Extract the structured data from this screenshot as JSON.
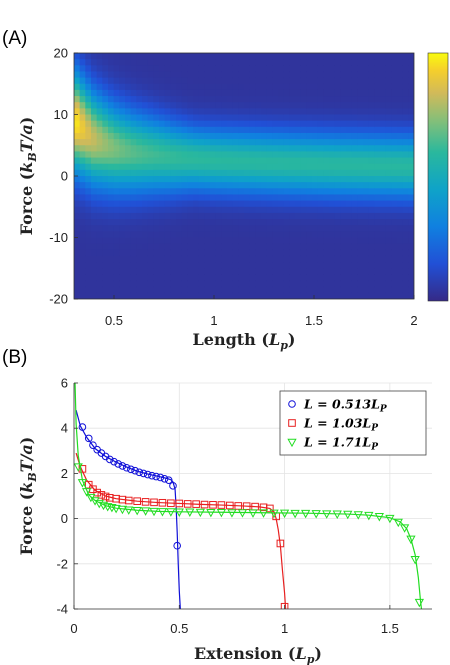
{
  "figure": {
    "panel_a_label": "(A)",
    "panel_b_label": "(B)"
  },
  "chart_data": [
    {
      "type": "heatmap",
      "panel": "(A)",
      "xlabel": "Length (L_p)",
      "xlabel_parts": {
        "main": "Length (",
        "sym": "L",
        "sub": "p",
        "close": ")"
      },
      "ylabel_parts": {
        "main": "Force (",
        "sym": "k",
        "sub": "B",
        "rest": "T/a",
        "close": ")"
      },
      "xlim": [
        0.3,
        2.0
      ],
      "ylim": [
        -20,
        20
      ],
      "xticks": [
        {
          "value": 0.5,
          "label": "0.5"
        },
        {
          "value": 1,
          "label": "1"
        },
        {
          "value": 1.5,
          "label": "1.5"
        },
        {
          "value": 2,
          "label": "2"
        }
      ],
      "yticks": [
        {
          "value": 20,
          "label": "20"
        },
        {
          "value": 10,
          "label": "10"
        },
        {
          "value": 0,
          "label": "0"
        },
        {
          "value": -10,
          "label": "-10"
        },
        {
          "value": -20,
          "label": "-20"
        }
      ],
      "colormap": "parula",
      "colorbar": true,
      "colors": {
        "low": "#352a87",
        "mid": "#0fa3c8",
        "high": "#f9fb0e"
      },
      "density_ridge": {
        "length": [
          0.3,
          0.4,
          0.5,
          0.6,
          0.8,
          1.0,
          1.3,
          1.6,
          2.0
        ],
        "force_peak": [
          9.0,
          6.0,
          4.5,
          3.8,
          3.0,
          2.5,
          2.1,
          1.8,
          1.5
        ]
      }
    },
    {
      "type": "scatter",
      "panel": "(B)",
      "xlabel": "Extension (L_p)",
      "xlabel_parts": {
        "main": "Extension (",
        "sym": "L",
        "sub": "p",
        "close": ")"
      },
      "ylabel_parts": {
        "main": "Force (",
        "sym": "k",
        "sub": "B",
        "rest": "T/a",
        "close": ")"
      },
      "xlim": [
        0,
        1.7
      ],
      "ylim": [
        -4,
        6
      ],
      "xticks": [
        {
          "value": 0,
          "label": "0"
        },
        {
          "value": 0.5,
          "label": "0.5"
        },
        {
          "value": 1,
          "label": "1"
        },
        {
          "value": 1.5,
          "label": "1.5"
        }
      ],
      "yticks": [
        {
          "value": 6,
          "label": "6"
        },
        {
          "value": 4,
          "label": "4"
        },
        {
          "value": 2,
          "label": "2"
        },
        {
          "value": 0,
          "label": "0"
        },
        {
          "value": -2,
          "label": "-2"
        },
        {
          "value": -4,
          "label": "-4"
        }
      ],
      "legend_position": "top-right",
      "series": [
        {
          "name": "L = 0.513L_P",
          "name_parts": {
            "pre": "L = 0.513",
            "sym": "L",
            "sub": "P"
          },
          "color": "#1010d8",
          "marker": "circle",
          "points": [
            [
              0.04,
              4.05
            ],
            [
              0.07,
              3.55
            ],
            [
              0.09,
              3.25
            ],
            [
              0.11,
              3.05
            ],
            [
              0.13,
              2.9
            ],
            [
              0.15,
              2.75
            ],
            [
              0.17,
              2.62
            ],
            [
              0.19,
              2.52
            ],
            [
              0.21,
              2.42
            ],
            [
              0.23,
              2.33
            ],
            [
              0.25,
              2.25
            ],
            [
              0.27,
              2.18
            ],
            [
              0.29,
              2.12
            ],
            [
              0.31,
              2.05
            ],
            [
              0.33,
              2.0
            ],
            [
              0.35,
              1.95
            ],
            [
              0.37,
              1.9
            ],
            [
              0.39,
              1.86
            ],
            [
              0.41,
              1.82
            ],
            [
              0.43,
              1.76
            ],
            [
              0.45,
              1.7
            ],
            [
              0.47,
              1.45
            ],
            [
              0.49,
              -1.2
            ]
          ],
          "curve": [
            [
              0.01,
              4.8
            ],
            [
              0.03,
              4.1
            ],
            [
              0.06,
              3.6
            ],
            [
              0.1,
              3.1
            ],
            [
              0.15,
              2.75
            ],
            [
              0.2,
              2.5
            ],
            [
              0.25,
              2.28
            ],
            [
              0.3,
              2.1
            ],
            [
              0.35,
              1.97
            ],
            [
              0.4,
              1.87
            ],
            [
              0.44,
              1.78
            ],
            [
              0.46,
              1.72
            ],
            [
              0.47,
              1.62
            ],
            [
              0.48,
              1.3
            ],
            [
              0.485,
              0.5
            ],
            [
              0.49,
              -0.6
            ],
            [
              0.495,
              -2.0
            ],
            [
              0.5,
              -3.2
            ],
            [
              0.505,
              -4.0
            ]
          ]
        },
        {
          "name": "L = 1.03L_P",
          "name_parts": {
            "pre": "L = 1.03",
            "sym": "L",
            "sub": "P"
          },
          "color": "#e82020",
          "marker": "square",
          "points": [
            [
              0.04,
              2.2
            ],
            [
              0.07,
              1.5
            ],
            [
              0.09,
              1.3
            ],
            [
              0.11,
              1.15
            ],
            [
              0.13,
              1.05
            ],
            [
              0.15,
              0.98
            ],
            [
              0.17,
              0.92
            ],
            [
              0.2,
              0.88
            ],
            [
              0.23,
              0.84
            ],
            [
              0.26,
              0.8
            ],
            [
              0.3,
              0.77
            ],
            [
              0.34,
              0.74
            ],
            [
              0.38,
              0.72
            ],
            [
              0.42,
              0.7
            ],
            [
              0.46,
              0.68
            ],
            [
              0.5,
              0.67
            ],
            [
              0.54,
              0.65
            ],
            [
              0.58,
              0.64
            ],
            [
              0.62,
              0.62
            ],
            [
              0.66,
              0.61
            ],
            [
              0.7,
              0.6
            ],
            [
              0.74,
              0.58
            ],
            [
              0.78,
              0.56
            ],
            [
              0.82,
              0.55
            ],
            [
              0.86,
              0.53
            ],
            [
              0.9,
              0.5
            ],
            [
              0.93,
              0.45
            ],
            [
              0.96,
              0.1
            ],
            [
              0.98,
              -1.1
            ],
            [
              1.0,
              -3.9
            ]
          ],
          "curve": [
            [
              0.01,
              2.9
            ],
            [
              0.03,
              2.3
            ],
            [
              0.06,
              1.7
            ],
            [
              0.1,
              1.25
            ],
            [
              0.15,
              1.0
            ],
            [
              0.2,
              0.88
            ],
            [
              0.3,
              0.77
            ],
            [
              0.4,
              0.71
            ],
            [
              0.5,
              0.67
            ],
            [
              0.6,
              0.63
            ],
            [
              0.7,
              0.6
            ],
            [
              0.8,
              0.56
            ],
            [
              0.88,
              0.52
            ],
            [
              0.93,
              0.45
            ],
            [
              0.95,
              0.3
            ],
            [
              0.96,
              0.0
            ],
            [
              0.97,
              -0.5
            ],
            [
              0.98,
              -1.2
            ],
            [
              0.99,
              -2.3
            ],
            [
              1.0,
              -3.3
            ],
            [
              1.005,
              -4.0
            ]
          ]
        },
        {
          "name": "L = 1.71L_P",
          "name_parts": {
            "pre": "L = 1.71",
            "sym": "L",
            "sub": "P"
          },
          "color": "#22dd22",
          "marker": "triangle-down",
          "points": [
            [
              0.02,
              2.3
            ],
            [
              0.04,
              1.6
            ],
            [
              0.06,
              1.2
            ],
            [
              0.08,
              0.95
            ],
            [
              0.1,
              0.8
            ],
            [
              0.12,
              0.68
            ],
            [
              0.14,
              0.6
            ],
            [
              0.16,
              0.54
            ],
            [
              0.18,
              0.5
            ],
            [
              0.2,
              0.46
            ],
            [
              0.23,
              0.42
            ],
            [
              0.26,
              0.39
            ],
            [
              0.3,
              0.37
            ],
            [
              0.34,
              0.35
            ],
            [
              0.38,
              0.33
            ],
            [
              0.42,
              0.32
            ],
            [
              0.46,
              0.31
            ],
            [
              0.5,
              0.3
            ],
            [
              0.55,
              0.3
            ],
            [
              0.6,
              0.29
            ],
            [
              0.65,
              0.28
            ],
            [
              0.7,
              0.28
            ],
            [
              0.75,
              0.27
            ],
            [
              0.8,
              0.27
            ],
            [
              0.85,
              0.26
            ],
            [
              0.9,
              0.26
            ],
            [
              0.95,
              0.25
            ],
            [
              1.0,
              0.25
            ],
            [
              1.05,
              0.24
            ],
            [
              1.1,
              0.24
            ],
            [
              1.15,
              0.23
            ],
            [
              1.2,
              0.22
            ],
            [
              1.25,
              0.21
            ],
            [
              1.3,
              0.2
            ],
            [
              1.35,
              0.18
            ],
            [
              1.4,
              0.15
            ],
            [
              1.45,
              0.1
            ],
            [
              1.5,
              0.02
            ],
            [
              1.54,
              -0.15
            ],
            [
              1.57,
              -0.4
            ],
            [
              1.6,
              -0.9
            ],
            [
              1.62,
              -1.8
            ],
            [
              1.64,
              -3.7
            ]
          ],
          "curve": [
            [
              0.005,
              6.0
            ],
            [
              0.01,
              4.2
            ],
            [
              0.02,
              2.8
            ],
            [
              0.04,
              1.7
            ],
            [
              0.07,
              1.05
            ],
            [
              0.1,
              0.8
            ],
            [
              0.15,
              0.57
            ],
            [
              0.2,
              0.46
            ],
            [
              0.3,
              0.37
            ],
            [
              0.4,
              0.32
            ],
            [
              0.5,
              0.3
            ],
            [
              0.7,
              0.28
            ],
            [
              0.9,
              0.26
            ],
            [
              1.1,
              0.24
            ],
            [
              1.3,
              0.2
            ],
            [
              1.4,
              0.15
            ],
            [
              1.5,
              0.04
            ],
            [
              1.55,
              -0.15
            ],
            [
              1.58,
              -0.45
            ],
            [
              1.6,
              -0.9
            ],
            [
              1.62,
              -1.6
            ],
            [
              1.635,
              -2.6
            ],
            [
              1.645,
              -3.6
            ],
            [
              1.65,
              -4.0
            ]
          ]
        }
      ]
    }
  ]
}
